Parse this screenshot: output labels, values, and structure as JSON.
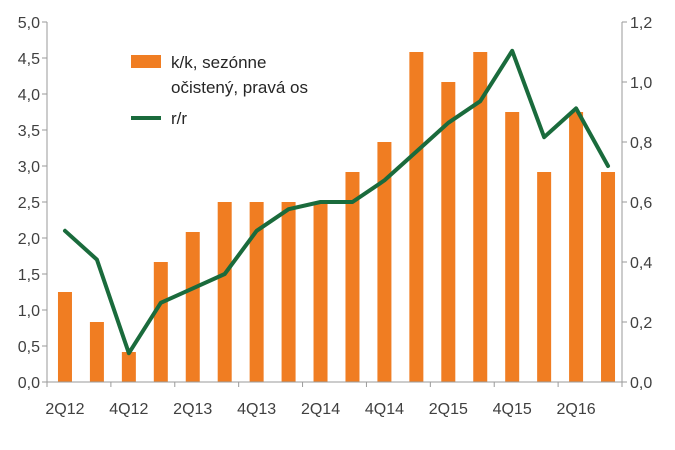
{
  "chart_data": {
    "type": "bar+line",
    "title": "",
    "x": [
      "2Q12",
      "3Q12",
      "4Q12",
      "1Q13",
      "2Q13",
      "3Q13",
      "4Q13",
      "1Q14",
      "2Q14",
      "3Q14",
      "4Q14",
      "1Q15",
      "2Q15",
      "3Q15",
      "4Q15",
      "1Q16",
      "2Q16",
      "3Q16"
    ],
    "x_tick_labels": [
      "2Q12",
      "",
      "4Q12",
      "",
      "2Q13",
      "",
      "4Q13",
      "",
      "2Q14",
      "",
      "4Q14",
      "",
      "2Q15",
      "",
      "4Q15",
      "",
      "2Q16",
      ""
    ],
    "series": [
      {
        "name": "k/k, sezónne očistený, pravá os",
        "type": "bar",
        "axis": "right",
        "color": "#F07D22",
        "values": [
          0.3,
          0.2,
          0.1,
          0.4,
          0.5,
          0.6,
          0.6,
          0.6,
          0.6,
          0.7,
          0.8,
          1.1,
          1.0,
          1.1,
          0.9,
          0.7,
          0.9,
          0.7
        ]
      },
      {
        "name": "r/r",
        "type": "line",
        "axis": "left",
        "color": "#1A6B3C",
        "values": [
          2.1,
          1.7,
          0.4,
          1.1,
          1.3,
          1.5,
          2.1,
          2.4,
          2.5,
          2.5,
          2.8,
          3.2,
          3.6,
          3.9,
          4.6,
          3.4,
          3.8,
          3.0
        ]
      }
    ],
    "y_left": {
      "min": 0,
      "max": 5,
      "ticks": [
        "0,0",
        "0,5",
        "1,0",
        "1,5",
        "2,0",
        "2,5",
        "3,0",
        "3,5",
        "4,0",
        "4,5",
        "5,0"
      ]
    },
    "y_right": {
      "min": 0,
      "max": 1.2,
      "ticks": [
        "0,0",
        "0,2",
        "0,4",
        "0,6",
        "0,8",
        "1,0",
        "1,2"
      ]
    },
    "legend": {
      "placement": "top-left",
      "line1": "k/k, sezónne",
      "line2": "očistený, pravá os",
      "line_label": "r/r"
    },
    "grid": false
  }
}
